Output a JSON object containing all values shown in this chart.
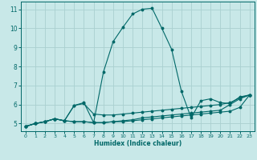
{
  "xlabel": "Humidex (Indice chaleur)",
  "xlim": [
    -0.5,
    23.5
  ],
  "ylim": [
    4.6,
    11.4
  ],
  "yticks": [
    5,
    6,
    7,
    8,
    9,
    10,
    11
  ],
  "xticks": [
    0,
    1,
    2,
    3,
    4,
    5,
    6,
    7,
    8,
    9,
    10,
    11,
    12,
    13,
    14,
    15,
    16,
    17,
    18,
    19,
    20,
    21,
    22,
    23
  ],
  "background_color": "#c8e8e8",
  "grid_color": "#aad0d0",
  "line_color": "#006868",
  "lines": [
    {
      "x": [
        0,
        1,
        2,
        3,
        4,
        5,
        6,
        7,
        8,
        9,
        10,
        11,
        12,
        13,
        14,
        15,
        16,
        17,
        18,
        19,
        20,
        21,
        22,
        23
      ],
      "y": [
        4.85,
        5.0,
        5.1,
        5.25,
        5.15,
        5.95,
        6.1,
        5.05,
        7.7,
        9.3,
        10.05,
        10.75,
        11.0,
        11.05,
        10.0,
        8.9,
        6.7,
        5.3,
        6.2,
        6.3,
        6.1,
        6.05,
        6.4,
        6.5
      ]
    },
    {
      "x": [
        0,
        1,
        2,
        3,
        4,
        5,
        6,
        7,
        8,
        9,
        10,
        11,
        12,
        13,
        14,
        15,
        16,
        17,
        18,
        19,
        20,
        21,
        22,
        23
      ],
      "y": [
        4.85,
        5.0,
        5.1,
        5.25,
        5.15,
        5.95,
        6.05,
        5.5,
        5.45,
        5.45,
        5.5,
        5.55,
        5.6,
        5.65,
        5.7,
        5.75,
        5.8,
        5.85,
        5.9,
        5.95,
        6.0,
        6.1,
        6.35,
        6.5
      ]
    },
    {
      "x": [
        0,
        1,
        2,
        3,
        4,
        5,
        6,
        7,
        8,
        9,
        10,
        11,
        12,
        13,
        14,
        15,
        16,
        17,
        18,
        19,
        20,
        21,
        22,
        23
      ],
      "y": [
        4.85,
        5.0,
        5.1,
        5.25,
        5.15,
        5.1,
        5.1,
        5.05,
        5.05,
        5.1,
        5.15,
        5.2,
        5.3,
        5.35,
        5.4,
        5.45,
        5.5,
        5.55,
        5.6,
        5.65,
        5.7,
        6.0,
        6.3,
        6.5
      ]
    },
    {
      "x": [
        0,
        1,
        2,
        3,
        4,
        5,
        6,
        7,
        8,
        9,
        10,
        11,
        12,
        13,
        14,
        15,
        16,
        17,
        18,
        19,
        20,
        21,
        22,
        23
      ],
      "y": [
        4.85,
        5.0,
        5.1,
        5.25,
        5.15,
        5.1,
        5.1,
        5.05,
        5.05,
        5.1,
        5.1,
        5.15,
        5.2,
        5.25,
        5.3,
        5.35,
        5.4,
        5.45,
        5.5,
        5.55,
        5.6,
        5.65,
        5.85,
        6.5
      ]
    }
  ]
}
